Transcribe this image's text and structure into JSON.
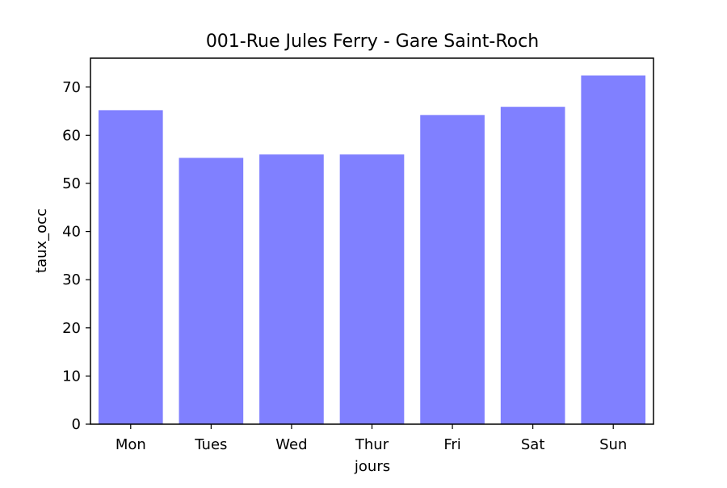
{
  "chart_data": {
    "type": "bar",
    "title": "001-Rue Jules Ferry - Gare Saint-Roch",
    "xlabel": "jours",
    "ylabel": "taux_occ",
    "categories": [
      "Mon",
      "Tues",
      "Wed",
      "Thur",
      "Fri",
      "Sat",
      "Sun"
    ],
    "values": [
      65.2,
      55.3,
      56.0,
      56.0,
      64.2,
      65.9,
      72.4
    ],
    "ylim": [
      0,
      76
    ],
    "yticks": [
      0,
      10,
      20,
      30,
      40,
      50,
      60,
      70
    ],
    "grid": false,
    "bar_color": "#8080ff"
  }
}
